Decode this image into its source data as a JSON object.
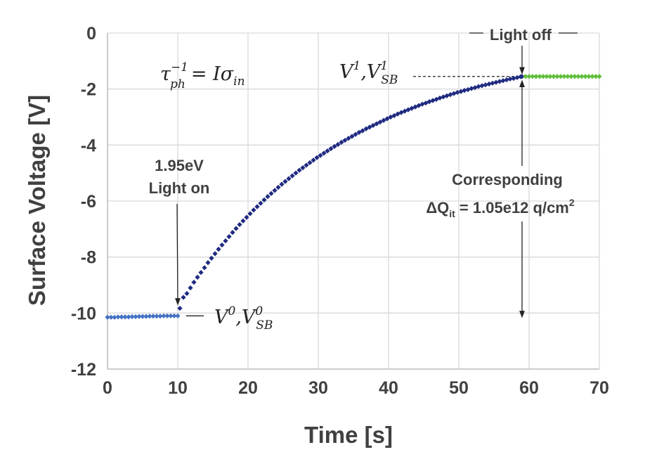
{
  "chart_data": {
    "type": "scatter",
    "title": "",
    "xlabel": "Time [s]",
    "ylabel": "Surface Voltage [V]",
    "xlim": [
      0,
      70
    ],
    "ylim": [
      -12,
      0
    ],
    "x_ticks": [
      "0",
      "10",
      "20",
      "30",
      "40",
      "50",
      "60",
      "70"
    ],
    "y_ticks": [
      "0",
      "-2",
      "-4",
      "-6",
      "-8",
      "-10",
      "-12"
    ],
    "grid": true,
    "legend": "none",
    "series": [
      {
        "color": "#4472c4",
        "description": "dark, before light on",
        "x": [
          0,
          0.5,
          1,
          1.5,
          2,
          2.5,
          3,
          3.5,
          4,
          4.5,
          5,
          5.5,
          6,
          6.5,
          7,
          7.5,
          8,
          8.5,
          9,
          9.5,
          10
        ],
        "y": [
          -10.15,
          -10.15,
          -10.15,
          -10.14,
          -10.14,
          -10.14,
          -10.14,
          -10.13,
          -10.13,
          -10.12,
          -10.12,
          -10.12,
          -10.11,
          -10.11,
          -10.11,
          -10.11,
          -10.1,
          -10.1,
          -10.1,
          -10.1,
          -10.1
        ]
      },
      {
        "color": "#1f2a80",
        "description": "illumination transient",
        "x": [
          10.3,
          10.8,
          11.3,
          11.8,
          12.3,
          12.8,
          13.3,
          13.8,
          14.3,
          14.8,
          15.3,
          15.8,
          16.3,
          16.8,
          17.3,
          17.8,
          18.3,
          18.8,
          19.3,
          19.8,
          20.3,
          20.8,
          21.3,
          21.8,
          22.3,
          22.8,
          23.3,
          23.8,
          24.3,
          24.8,
          25.3,
          25.8,
          26.3,
          26.8,
          27.3,
          27.8,
          28.3,
          28.8,
          29.3,
          29.8,
          30.3,
          30.8,
          31.3,
          31.8,
          32.3,
          32.8,
          33.3,
          33.8,
          34.3,
          34.8,
          35.3,
          35.8,
          36.3,
          36.8,
          37.3,
          37.8,
          38.3,
          38.8,
          39.3,
          39.8,
          40.3,
          40.8,
          41.3,
          41.8,
          42.3,
          42.8,
          43.3,
          43.8,
          44.3,
          44.8,
          45.3,
          45.8,
          46.3,
          46.8,
          47.3,
          47.8,
          48.3,
          48.8,
          49.3,
          49.8,
          50.3,
          50.8,
          51.3,
          51.8,
          52.3,
          52.8,
          53.3,
          53.8,
          54.3,
          54.8,
          55.3,
          55.8,
          56.3,
          56.8,
          57.3,
          57.8,
          58.3,
          58.8,
          59
        ],
        "y": [
          -9.83,
          -9.44,
          -9.3,
          -9.1,
          -8.9,
          -8.72,
          -8.55,
          -8.38,
          -8.2,
          -8.04,
          -7.88,
          -7.72,
          -7.57,
          -7.42,
          -7.27,
          -7.12,
          -6.98,
          -6.84,
          -6.71,
          -6.58,
          -6.45,
          -6.32,
          -6.2,
          -6.08,
          -5.96,
          -5.84,
          -5.73,
          -5.62,
          -5.51,
          -5.4,
          -5.3,
          -5.2,
          -5.1,
          -5.0,
          -4.9,
          -4.81,
          -4.72,
          -4.63,
          -4.54,
          -4.45,
          -4.37,
          -4.29,
          -4.21,
          -4.13,
          -4.05,
          -3.98,
          -3.9,
          -3.83,
          -3.76,
          -3.69,
          -3.62,
          -3.55,
          -3.49,
          -3.42,
          -3.36,
          -3.3,
          -3.24,
          -3.18,
          -3.12,
          -3.06,
          -3.0,
          -2.95,
          -2.89,
          -2.84,
          -2.79,
          -2.74,
          -2.69,
          -2.64,
          -2.59,
          -2.54,
          -2.5,
          -2.45,
          -2.41,
          -2.37,
          -2.32,
          -2.28,
          -2.24,
          -2.2,
          -2.16,
          -2.12,
          -2.09,
          -2.05,
          -2.02,
          -1.98,
          -1.95,
          -1.91,
          -1.88,
          -1.85,
          -1.82,
          -1.79,
          -1.76,
          -1.73,
          -1.7,
          -1.67,
          -1.64,
          -1.62,
          -1.59,
          -1.56,
          -1.55
        ]
      },
      {
        "color": "#5fbf3c",
        "description": "after light off",
        "x": [
          59.5,
          60,
          60.5,
          61,
          61.5,
          62,
          62.5,
          63,
          63.5,
          64,
          64.5,
          65,
          65.5,
          66,
          66.5,
          67,
          67.5,
          68,
          68.5,
          69,
          69.5,
          70
        ],
        "y": [
          -1.55,
          -1.55,
          -1.55,
          -1.55,
          -1.55,
          -1.55,
          -1.55,
          -1.55,
          -1.55,
          -1.55,
          -1.55,
          -1.55,
          -1.55,
          -1.55,
          -1.55,
          -1.55,
          -1.55,
          -1.55,
          -1.55,
          -1.55,
          -1.55,
          -1.55
        ]
      }
    ],
    "annotations": {
      "equation": {
        "lhs_base": "τ",
        "lhs_sub": "ph",
        "lhs_sup": "−1",
        "rhs": "= Iσ",
        "rhs_sub": "in"
      },
      "light_on": {
        "line1": "1.95eV",
        "line2": "Light on"
      },
      "light_off": "Light off",
      "v0": {
        "base": "V",
        "sup": "0",
        "sep": ",V",
        "sub": "SB",
        "sup2": "0"
      },
      "v1": {
        "base": "V",
        "sup": "1",
        "sep": ",V",
        "sub": "SB",
        "sup2": "1"
      },
      "corresponding": "Corresponding",
      "delta_q": {
        "pre": "ΔQ",
        "sub": "it",
        "mid": " = 1.05e12 q/cm",
        "sup": "2"
      }
    }
  }
}
